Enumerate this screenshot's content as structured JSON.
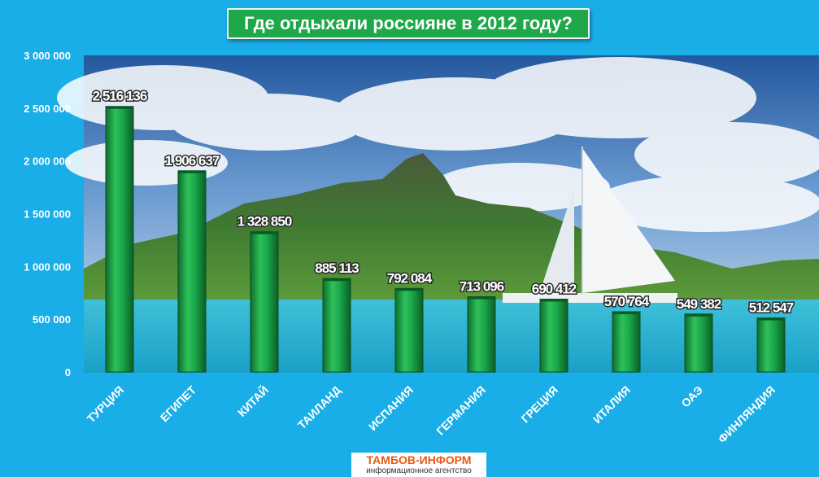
{
  "title": "Где отдыхали россияне в 2012 году?",
  "logo": {
    "main": "ТАМБОВ-ИНФОРМ",
    "sub": "информационное агентство"
  },
  "colors": {
    "bar": "#1aa84a",
    "bar_dark": "#0c6e2c",
    "background": "#19aee8"
  },
  "chart_data": {
    "type": "bar",
    "title": "Где отдыхали россияне в 2012 году?",
    "categories": [
      "ТУРЦИЯ",
      "ЕГИПЕТ",
      "КИТАЙ",
      "ТАИЛАНД",
      "ИСПАНИЯ",
      "ГЕРМАНИЯ",
      "ГРЕЦИЯ",
      "ИТАЛИЯ",
      "ОАЭ",
      "ФИНЛЯНДИЯ"
    ],
    "values": [
      2516136,
      1906637,
      1328850,
      885113,
      792084,
      713096,
      690412,
      570764,
      549382,
      512547
    ],
    "data_labels": [
      "2 516 136",
      "1 906 637",
      "1 328 850",
      "885 113",
      "792 084",
      "713 096",
      "690 412",
      "570 764",
      "549 382",
      "512 547"
    ],
    "ylim": [
      0,
      3000000
    ],
    "yticks": [
      0,
      500000,
      1000000,
      1500000,
      2000000,
      2500000,
      3000000
    ],
    "ytick_labels": [
      "0",
      "500 000",
      "1 000 000",
      "1 500 000",
      "2 000 000",
      "2 500 000",
      "3 000 000"
    ],
    "grid": false,
    "background": "photo: sea, green mountain island, sailing yacht"
  }
}
